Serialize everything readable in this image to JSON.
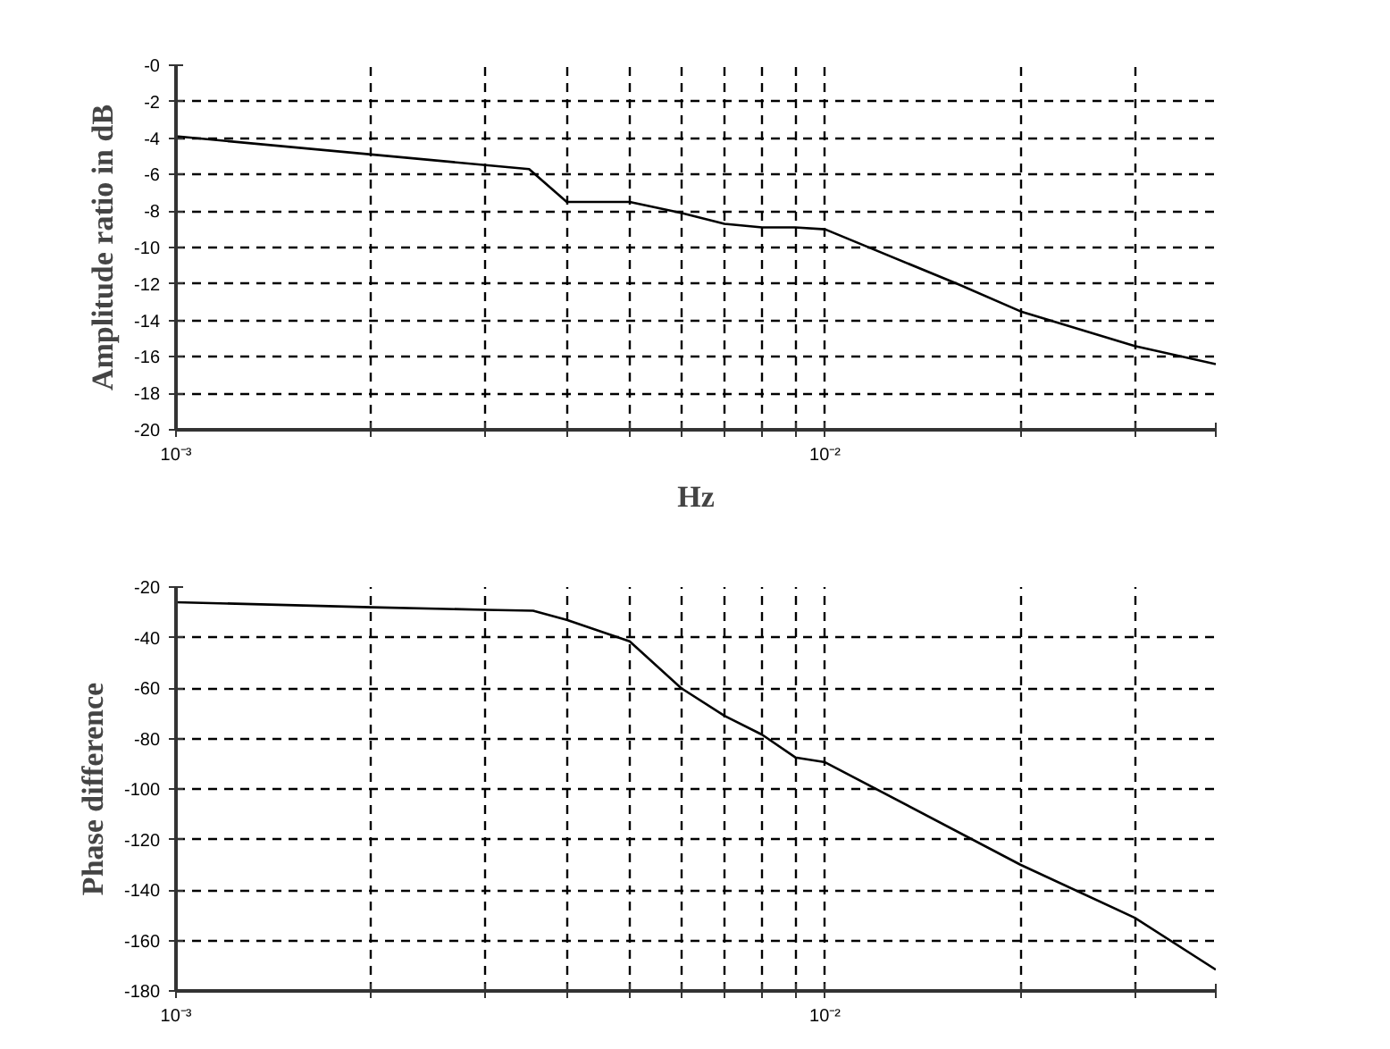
{
  "chart_data": [
    {
      "type": "line",
      "xlabel": "Hz",
      "ylabel": "Amplitude ratio in dB",
      "log": "x",
      "grid": true,
      "line_style": "solid",
      "xlim": [
        0.001,
        0.04
      ],
      "ylim": [
        -20,
        0
      ],
      "xticks": [
        {
          "value": 0.001,
          "label": "10⁻³"
        },
        {
          "value": 0.002,
          "label": null
        },
        {
          "value": 0.003,
          "label": null
        },
        {
          "value": 0.004,
          "label": null
        },
        {
          "value": 0.005,
          "label": null
        },
        {
          "value": 0.006,
          "label": null
        },
        {
          "value": 0.007,
          "label": null
        },
        {
          "value": 0.008,
          "label": null
        },
        {
          "value": 0.009,
          "label": null
        },
        {
          "value": 0.01,
          "label": "10⁻²"
        },
        {
          "value": 0.02,
          "label": null
        },
        {
          "value": 0.03,
          "label": null
        },
        {
          "value": 0.04,
          "label": null
        }
      ],
      "yticks": [
        {
          "value": 0,
          "label": "-0"
        },
        -2,
        -4,
        -6,
        -8,
        -10,
        -12,
        -14,
        -16,
        -18,
        -20
      ],
      "x": [
        0.001,
        0.0035,
        0.004,
        0.005,
        0.006,
        0.007,
        0.008,
        0.009,
        0.01,
        0.016,
        0.02,
        0.03,
        0.04
      ],
      "series": [
        {
          "color": "#000000",
          "values": [
            -3.9,
            -5.7,
            -7.5,
            -7.5,
            -8.1,
            -8.7,
            -8.9,
            -8.9,
            -9.0,
            -12.0,
            -13.5,
            -15.4,
            -16.4
          ]
        }
      ]
    },
    {
      "type": "line",
      "ylabel": "Phase difference",
      "log": "x",
      "grid": true,
      "line_style": "solid",
      "xlim": [
        0.001,
        0.04
      ],
      "ylim": [
        -180,
        -20
      ],
      "xticks": [
        {
          "value": 0.001,
          "label": "10⁻³"
        },
        {
          "value": 0.002,
          "label": null
        },
        {
          "value": 0.003,
          "label": null
        },
        {
          "value": 0.004,
          "label": null
        },
        {
          "value": 0.005,
          "label": null
        },
        {
          "value": 0.006,
          "label": null
        },
        {
          "value": 0.007,
          "label": null
        },
        {
          "value": 0.008,
          "label": null
        },
        {
          "value": 0.009,
          "label": null
        },
        {
          "value": 0.01,
          "label": "10⁻²"
        },
        {
          "value": 0.02,
          "label": null
        },
        {
          "value": 0.03,
          "label": null
        },
        {
          "value": 0.04,
          "label": null
        }
      ],
      "yticks": [
        -20,
        -40,
        -60,
        -80,
        -100,
        -120,
        -140,
        -160,
        -180
      ],
      "x": [
        0.001,
        0.002,
        0.003,
        0.00355,
        0.004,
        0.005,
        0.006,
        0.007,
        0.008,
        0.009,
        0.01,
        0.02,
        0.03,
        0.04
      ],
      "series": [
        {
          "color": "#000000",
          "values": [
            -26,
            -28,
            -29,
            -29.4,
            -33,
            -41.5,
            -60,
            -71,
            -78.5,
            -87.5,
            -89.4,
            -130,
            -151,
            -171.6
          ]
        }
      ]
    }
  ]
}
